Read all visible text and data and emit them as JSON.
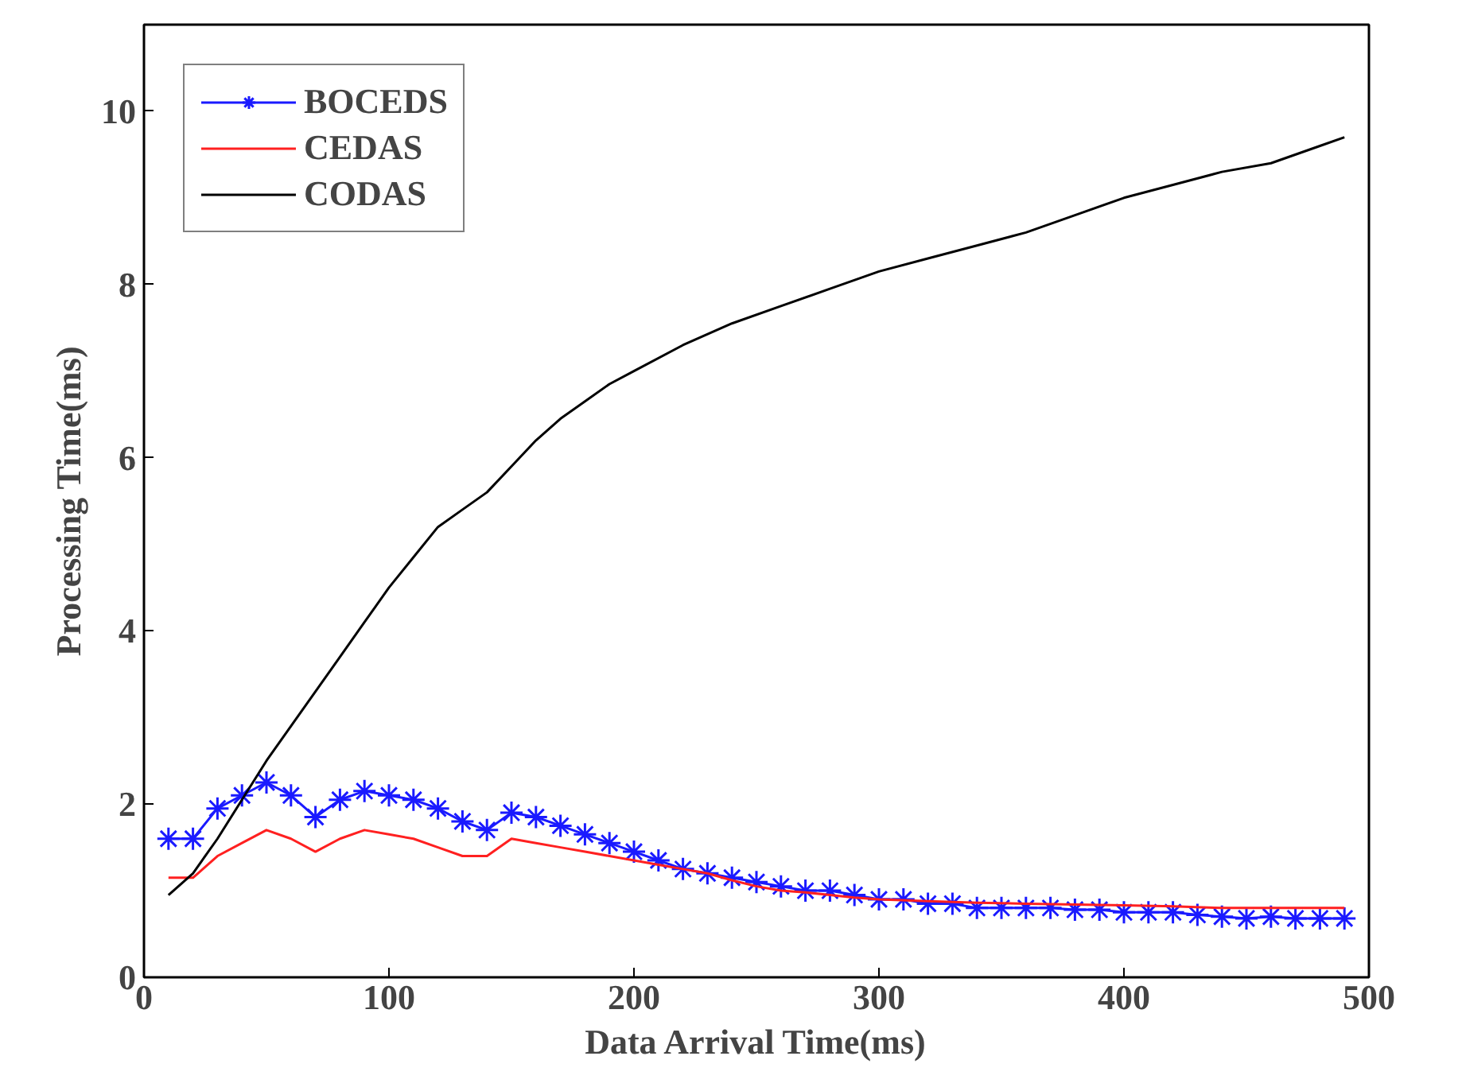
{
  "chart_data": {
    "type": "line",
    "xlabel": "Data Arrival Time(ms)",
    "ylabel": "Processing Time(ms)",
    "xlim": [
      0,
      500
    ],
    "ylim": [
      0,
      11
    ],
    "xticks": [
      0,
      100,
      200,
      300,
      400,
      500
    ],
    "yticks": [
      0,
      2,
      4,
      6,
      8,
      10
    ],
    "grid": false,
    "legend": "top left",
    "line_style": "solid",
    "series": [
      {
        "name": "BOCEDS",
        "color": "#1a1aff",
        "marker": "cross",
        "x": [
          10,
          20,
          30,
          40,
          50,
          60,
          70,
          80,
          90,
          100,
          110,
          120,
          130,
          140,
          150,
          160,
          170,
          180,
          190,
          200,
          210,
          220,
          230,
          240,
          250,
          260,
          270,
          280,
          290,
          300,
          310,
          320,
          330,
          340,
          350,
          360,
          370,
          380,
          390,
          400,
          410,
          420,
          430,
          440,
          450,
          460,
          470,
          480,
          490
        ],
        "values": [
          1.6,
          1.6,
          1.95,
          2.1,
          2.25,
          2.1,
          1.85,
          2.05,
          2.15,
          2.1,
          2.05,
          1.95,
          1.8,
          1.7,
          1.9,
          1.85,
          1.75,
          1.65,
          1.55,
          1.45,
          1.35,
          1.25,
          1.2,
          1.15,
          1.1,
          1.05,
          1.0,
          1.0,
          0.95,
          0.9,
          0.9,
          0.85,
          0.85,
          0.8,
          0.8,
          0.8,
          0.8,
          0.78,
          0.78,
          0.75,
          0.75,
          0.75,
          0.72,
          0.7,
          0.68,
          0.7,
          0.68,
          0.68,
          0.68
        ]
      },
      {
        "name": "CEDAS",
        "color": "#ff2020",
        "marker": "none",
        "x": [
          10,
          20,
          30,
          40,
          50,
          60,
          70,
          80,
          90,
          100,
          110,
          120,
          130,
          140,
          150,
          160,
          170,
          180,
          190,
          200,
          210,
          220,
          230,
          240,
          250,
          260,
          270,
          280,
          290,
          300,
          320,
          340,
          360,
          380,
          400,
          420,
          440,
          460,
          480,
          490
        ],
        "values": [
          1.15,
          1.15,
          1.4,
          1.55,
          1.7,
          1.6,
          1.45,
          1.6,
          1.7,
          1.65,
          1.6,
          1.5,
          1.4,
          1.4,
          1.6,
          1.55,
          1.5,
          1.45,
          1.4,
          1.35,
          1.3,
          1.25,
          1.2,
          1.12,
          1.05,
          1.0,
          0.98,
          0.95,
          0.92,
          0.9,
          0.88,
          0.86,
          0.85,
          0.84,
          0.83,
          0.82,
          0.8,
          0.8,
          0.8,
          0.8
        ]
      },
      {
        "name": "CODAS",
        "color": "#000000",
        "marker": "none",
        "x": [
          10,
          20,
          30,
          40,
          50,
          60,
          70,
          80,
          90,
          100,
          110,
          120,
          130,
          140,
          150,
          160,
          170,
          180,
          190,
          200,
          220,
          240,
          260,
          280,
          300,
          320,
          340,
          360,
          380,
          400,
          420,
          440,
          460,
          480,
          490
        ],
        "values": [
          0.95,
          1.2,
          1.6,
          2.05,
          2.5,
          2.9,
          3.3,
          3.7,
          4.1,
          4.5,
          4.85,
          5.2,
          5.4,
          5.6,
          5.9,
          6.2,
          6.45,
          6.65,
          6.85,
          7.0,
          7.3,
          7.55,
          7.75,
          7.95,
          8.15,
          8.3,
          8.45,
          8.6,
          8.8,
          9.0,
          9.15,
          9.3,
          9.4,
          9.6,
          9.7
        ]
      }
    ]
  }
}
